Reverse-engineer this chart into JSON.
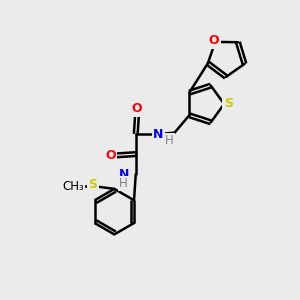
{
  "bg_color": "#ebebeb",
  "bond_color": "#000000",
  "bond_width": 1.8,
  "atom_colors": {
    "O": "#ff0000",
    "N": "#0000ff",
    "S": "#cccc00",
    "C": "#000000",
    "H": "#808080"
  },
  "figsize": [
    3.0,
    3.0
  ],
  "dpi": 100
}
